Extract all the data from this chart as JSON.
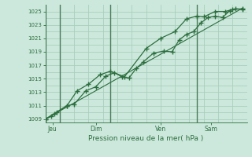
{
  "title": "",
  "xlabel": "Pression niveau de la mer( hPa )",
  "ylabel": "",
  "bg_color": "#cce8dc",
  "plot_bg_color": "#cce8dc",
  "line_color": "#2d6e3e",
  "grid_major_color": "#aacfbe",
  "grid_minor_color": "#aacfbe",
  "tick_color": "#2d6e3e",
  "axis_color": "#2d6e3e",
  "vline_color": "#4a7a5a",
  "ylim": [
    1008.5,
    1026.0
  ],
  "yticks": [
    1009,
    1011,
    1013,
    1015,
    1017,
    1019,
    1021,
    1023,
    1025
  ],
  "day_labels": [
    "Jeu",
    "Dim",
    "Ven",
    "Sam"
  ],
  "day_positions": [
    0.5,
    3.5,
    8.0,
    11.5
  ],
  "day_vline_positions": [
    1.0,
    4.5,
    10.5
  ],
  "series1_x": [
    0.0,
    0.4,
    0.8,
    1.5,
    2.0,
    2.8,
    3.5,
    4.2,
    4.8,
    5.3,
    5.8,
    6.3,
    6.8,
    7.5,
    8.2,
    8.8,
    9.3,
    9.8,
    10.3,
    10.8,
    11.3,
    11.8,
    12.3,
    12.8,
    13.2,
    13.7
  ],
  "series1_y": [
    1009.0,
    1009.4,
    1010.0,
    1011.0,
    1011.2,
    1013.2,
    1013.8,
    1015.4,
    1015.9,
    1015.3,
    1015.1,
    1016.5,
    1017.5,
    1018.8,
    1019.1,
    1019.0,
    1020.8,
    1021.6,
    1022.0,
    1023.3,
    1024.1,
    1024.3,
    1024.1,
    1025.1,
    1025.4,
    1025.3
  ],
  "series2_x": [
    0.0,
    0.6,
    1.5,
    2.2,
    3.0,
    3.8,
    4.5,
    5.5,
    7.0,
    8.0,
    9.0,
    9.8,
    10.5,
    11.0,
    11.8,
    12.5,
    13.0,
    13.7
  ],
  "series2_y": [
    1009.0,
    1009.8,
    1011.0,
    1013.2,
    1014.2,
    1015.6,
    1016.1,
    1015.3,
    1019.5,
    1021.0,
    1022.0,
    1023.9,
    1024.3,
    1024.2,
    1025.0,
    1025.0,
    1025.3,
    1025.4
  ],
  "trend_x": [
    0.0,
    13.7
  ],
  "trend_y": [
    1009.0,
    1025.5
  ],
  "xlim": [
    0.0,
    14.0
  ],
  "num_vgrid": 14,
  "num_hgrid_minor": 1
}
